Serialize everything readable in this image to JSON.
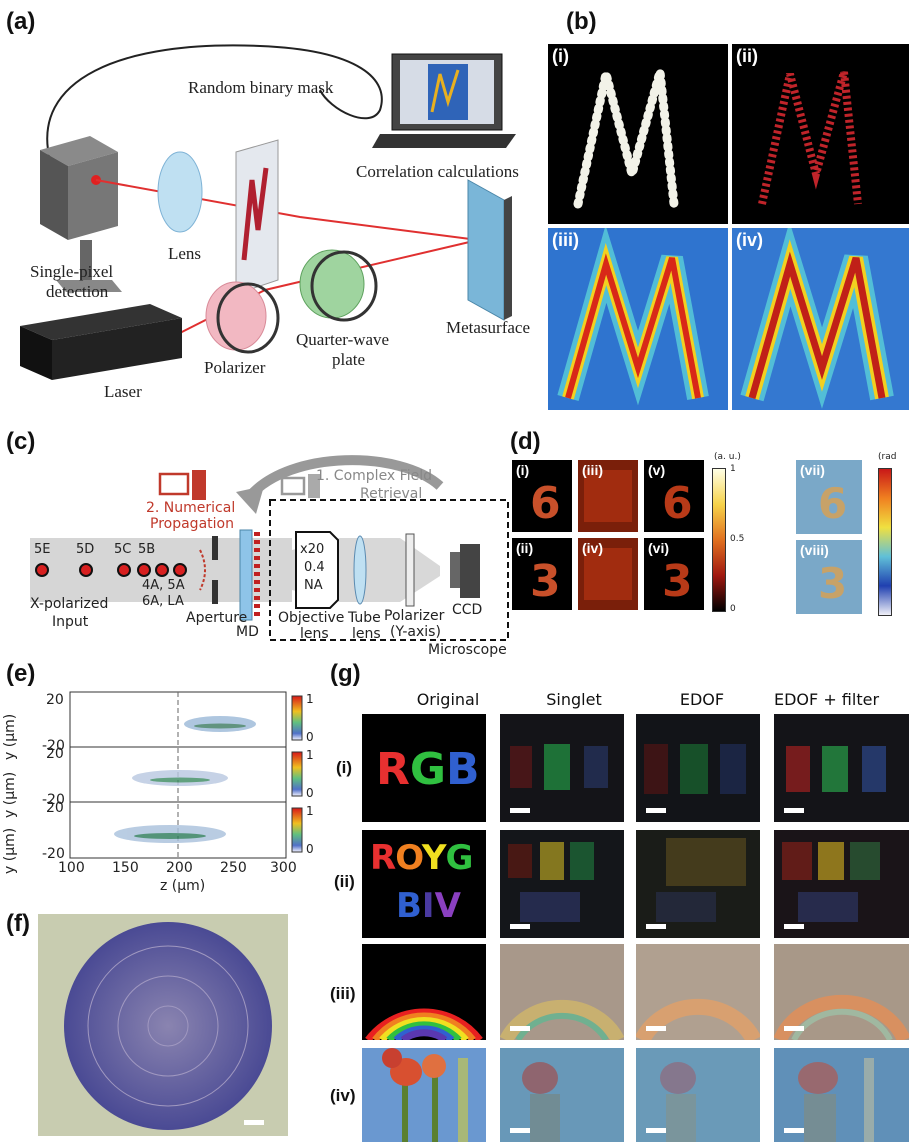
{
  "panels": {
    "a": {
      "label": "(a)",
      "text": {
        "mask": "Random binary mask",
        "correlation": "Correlation calculations",
        "lens": "Lens",
        "detector_line1": "Single-pixel",
        "detector_line2": "detection",
        "polarizer": "Polarizer",
        "qwp_line1": "Quarter-wave",
        "qwp_line2": "plate",
        "metasurface": "Metasurface",
        "laser": "Laser"
      }
    },
    "b": {
      "label": "(b)",
      "tiles": [
        "(i)",
        "(ii)",
        "(iii)",
        "(iv)"
      ]
    },
    "c": {
      "label": "(c)",
      "text": {
        "retrieval_line1": "1. Complex Field",
        "retrieval_line2": "Retrieval",
        "numerical_line1": "2. Numerical",
        "numerical_line2": "Propagation",
        "points": [
          "5E",
          "5D",
          "5C",
          "5B"
        ],
        "points_sub1": "4A, 5A",
        "points_sub2": "6A, LA",
        "input_line1": "X-polarized",
        "input_line2": "Input",
        "aperture": "Aperture",
        "md": "MD",
        "obj_mag": "x20",
        "obj_na_value": "0.4",
        "obj_na_label": "NA",
        "objective_line1": "Objective",
        "objective_line2": "lens",
        "tube_line1": "Tube",
        "tube_line2": "lens",
        "polarizer_line1": "Polarizer",
        "polarizer_line2": "(Y-axis)",
        "ccd": "CCD",
        "microscope": "Microscope"
      }
    },
    "d": {
      "label": "(d)",
      "tiles": [
        "(i)",
        "(iii)",
        "(v)",
        "(vii)",
        "(ii)",
        "(iv)",
        "(vi)",
        "(viii)"
      ],
      "colorbar1": {
        "unit": "(a. u.)",
        "max": "1",
        "mid": "0.5",
        "min": "0"
      },
      "colorbar2": {
        "unit": "(rad"
      }
    },
    "e": {
      "label": "(e)",
      "ylabel": "y (μm)",
      "xlabel": "z (μm)",
      "yticks": [
        "20",
        "-20"
      ],
      "xticks": [
        "100",
        "150",
        "200",
        "250",
        "300"
      ],
      "cbar_ticks": [
        "1",
        "0"
      ]
    },
    "f": {
      "label": "(f)"
    },
    "g": {
      "label": "(g)",
      "columns": [
        "Original",
        "Singlet",
        "EDOF",
        "EDOF + filter"
      ],
      "rows": [
        "(i)",
        "(ii)",
        "(iii)",
        "(iv)"
      ],
      "rgb_letters": [
        "R",
        "G",
        "B"
      ],
      "roygbiv_top": [
        "R",
        "O",
        "Y",
        "G"
      ],
      "roygbiv_bottom": [
        "B",
        "I",
        "V"
      ]
    }
  },
  "colors": {
    "laser_beam": "#e03030",
    "red_text": "#c0392b",
    "sky": "#5a86c8"
  }
}
